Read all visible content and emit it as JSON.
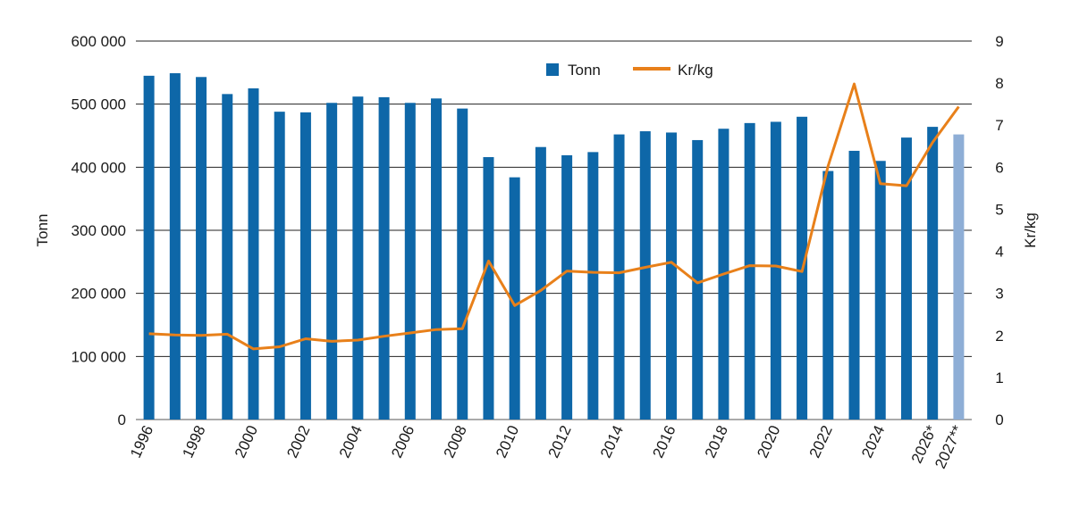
{
  "chart_data": {
    "type": "bar",
    "title": "",
    "categories": [
      "1996",
      "1997",
      "1998",
      "1999",
      "2000",
      "2001",
      "2002",
      "2003",
      "2004",
      "2005",
      "2006",
      "2007",
      "2008",
      "2009",
      "2010",
      "2011",
      "2012",
      "2013",
      "2014",
      "2015",
      "2016",
      "2017",
      "2018",
      "2019",
      "2020",
      "2021",
      "2022",
      "2023",
      "2024",
      "2025",
      "2026*",
      "2027**"
    ],
    "x_tick_labels": [
      "1996",
      "",
      "1998",
      "",
      "2000",
      "",
      "2002",
      "",
      "2004",
      "",
      "2006",
      "",
      "2008",
      "",
      "2010",
      "",
      "2012",
      "",
      "2014",
      "",
      "2016",
      "",
      "2018",
      "",
      "2020",
      "",
      "2022",
      "",
      "2024",
      "",
      "2026*",
      "2027**"
    ],
    "series": [
      {
        "name": "Tonn",
        "type": "bar",
        "axis": "left",
        "color": "#0e67a8",
        "highlight_last_color": "#8eaed6",
        "values": [
          545000,
          549000,
          543000,
          516000,
          525000,
          488000,
          487000,
          502000,
          512000,
          511000,
          502000,
          509000,
          493000,
          416000,
          384000,
          432000,
          419000,
          424000,
          452000,
          457000,
          455000,
          443000,
          461000,
          470000,
          472000,
          480000,
          394000,
          426000,
          410000,
          447000,
          464000,
          452000
        ]
      },
      {
        "name": "Kr/kg",
        "type": "line",
        "axis": "right",
        "color": "#e8801a",
        "values": [
          2.04,
          2.01,
          2.0,
          2.03,
          1.68,
          1.73,
          1.92,
          1.86,
          1.89,
          1.98,
          2.06,
          2.14,
          2.16,
          3.77,
          2.71,
          3.07,
          3.53,
          3.5,
          3.49,
          3.62,
          3.74,
          3.25,
          3.46,
          3.66,
          3.65,
          3.52,
          6.03,
          7.98,
          5.61,
          5.56,
          6.59,
          7.44
        ]
      }
    ],
    "ylabel": "Tonn",
    "y2label": "Kr/kg",
    "ylim": [
      0,
      600000
    ],
    "y2lim": [
      0,
      9
    ],
    "yticks": [
      0,
      100000,
      200000,
      300000,
      400000,
      500000,
      600000
    ],
    "ytick_labels": [
      "0",
      "100 000",
      "200 000",
      "300 000",
      "400 000",
      "500 000",
      "600 000"
    ],
    "y2ticks": [
      0,
      1,
      2,
      3,
      4,
      5,
      6,
      7,
      8,
      9
    ],
    "y2tick_labels": [
      "0",
      "1",
      "2",
      "3",
      "4",
      "5",
      "6",
      "7",
      "8",
      "9"
    ],
    "grid": true,
    "legend_position": "top-center",
    "legend": [
      {
        "label": "Tonn",
        "kind": "square"
      },
      {
        "label": "Kr/kg",
        "kind": "line"
      }
    ]
  }
}
